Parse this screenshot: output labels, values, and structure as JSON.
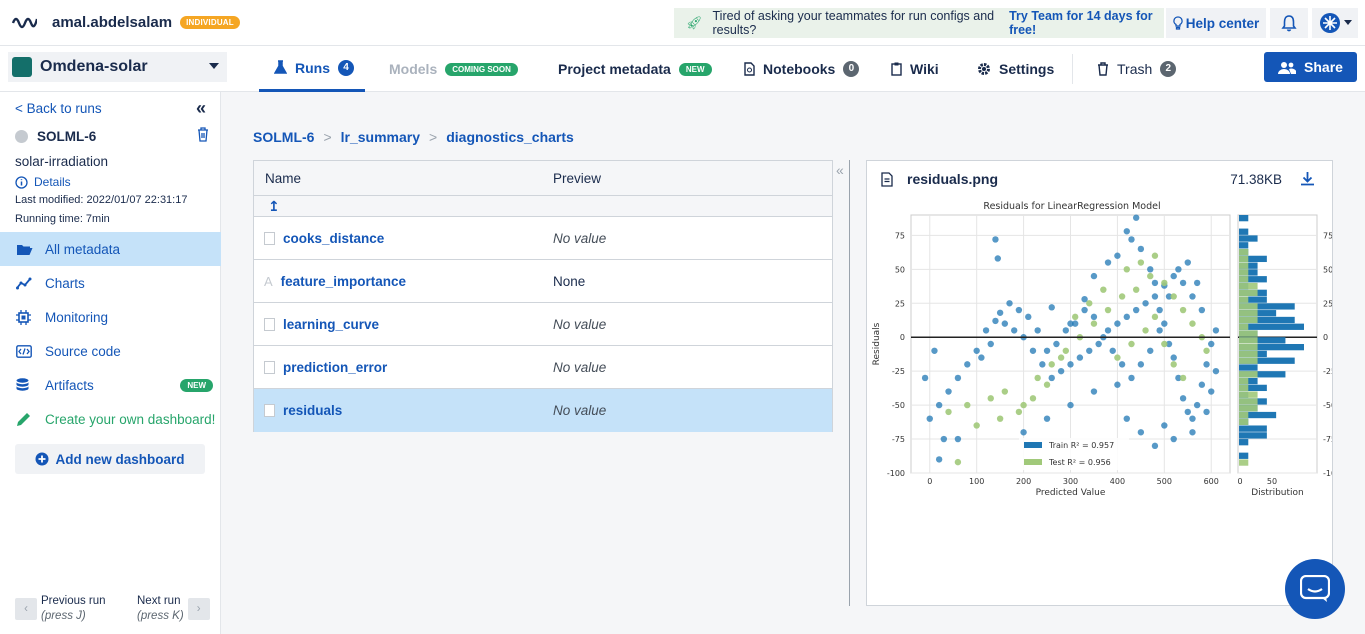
{
  "header": {
    "username": "amal.abdelsalam",
    "plan_badge": "INDIVIDUAL",
    "promo_text": "Tired of asking your teammates for run configs and results?",
    "promo_link": "Try Team for 14 days for free!",
    "help_label": "Help center"
  },
  "project": {
    "name": "Omdena-solar"
  },
  "tabs": {
    "runs": "Runs",
    "runs_count": "4",
    "models": "Models",
    "models_badge": "COMING SOON",
    "project_metadata": "Project metadata",
    "pm_badge": "NEW",
    "notebooks": "Notebooks",
    "notebooks_count": "0",
    "wiki": "Wiki",
    "settings": "Settings",
    "trash": "Trash",
    "trash_count": "2",
    "share": "Share"
  },
  "sidebar": {
    "back": "< Back to runs",
    "run_id": "SOLML-6",
    "run_name": "solar-irradiation",
    "details": "Details",
    "last_modified": "Last modified: 2022/01/07 22:31:17",
    "running_time": "Running time: 7min",
    "items": [
      {
        "label": "All metadata"
      },
      {
        "label": "Charts"
      },
      {
        "label": "Monitoring"
      },
      {
        "label": "Source code"
      },
      {
        "label": "Artifacts",
        "badge": "NEW"
      },
      {
        "label": "Create your own dashboard!"
      }
    ],
    "add_dashboard": "Add new dashboard",
    "prev_run": "Previous run",
    "prev_hint": "(press J)",
    "next_run": "Next run",
    "next_hint": "(press K)"
  },
  "breadcrumb": [
    "SOLML-6",
    "lr_summary",
    "diagnostics_charts"
  ],
  "table": {
    "col_name": "Name",
    "col_preview": "Preview",
    "up_symbol": "↥",
    "rows": [
      {
        "name": "cooks_distance",
        "preview": "No value"
      },
      {
        "name": "feature_importance",
        "preview": "None"
      },
      {
        "name": "learning_curve",
        "preview": "No value"
      },
      {
        "name": "prediction_error",
        "preview": "No value"
      },
      {
        "name": "residuals",
        "preview": "No value"
      }
    ]
  },
  "preview": {
    "filename": "residuals.png",
    "size": "71.38KB"
  },
  "chart_data": {
    "type": "scatter",
    "title": "Residuals for LinearRegression Model",
    "xlabel": "Predicted Value",
    "ylabel": "Residuals",
    "xlim": [
      -40,
      640
    ],
    "ylim": [
      -100,
      90
    ],
    "xticks": [
      "0",
      "100",
      "200",
      "300",
      "400",
      "500",
      "600"
    ],
    "yticks": [
      "75",
      "50",
      "25",
      "0",
      "-25",
      "-50",
      "-75",
      "-100"
    ],
    "hist_xlabel": "Distribution",
    "hist_xticks": [
      "0",
      "50"
    ],
    "legend": [
      "Train R² = 0.957",
      "Test R² = 0.956"
    ],
    "colors": {
      "train": "#1f77b4",
      "test": "#a1c97a"
    },
    "series": [
      {
        "name": "Train R² = 0.957",
        "points": [
          [
            140,
            72
          ],
          [
            145,
            58
          ],
          [
            260,
            22
          ],
          [
            300,
            10
          ],
          [
            330,
            28
          ],
          [
            350,
            45
          ],
          [
            380,
            55
          ],
          [
            400,
            60
          ],
          [
            420,
            78
          ],
          [
            430,
            72
          ],
          [
            440,
            88
          ],
          [
            450,
            65
          ],
          [
            470,
            50
          ],
          [
            480,
            40
          ],
          [
            490,
            20
          ],
          [
            500,
            10
          ],
          [
            510,
            -5
          ],
          [
            520,
            -15
          ],
          [
            530,
            -30
          ],
          [
            540,
            -45
          ],
          [
            550,
            -55
          ],
          [
            560,
            -60
          ],
          [
            570,
            -50
          ],
          [
            580,
            -35
          ],
          [
            590,
            -20
          ],
          [
            600,
            -5
          ],
          [
            610,
            5
          ],
          [
            560,
            30
          ],
          [
            540,
            40
          ],
          [
            520,
            45
          ],
          [
            500,
            38
          ],
          [
            480,
            30
          ],
          [
            460,
            25
          ],
          [
            440,
            20
          ],
          [
            420,
            15
          ],
          [
            400,
            10
          ],
          [
            380,
            5
          ],
          [
            360,
            -5
          ],
          [
            340,
            -10
          ],
          [
            320,
            -15
          ],
          [
            300,
            -20
          ],
          [
            280,
            -25
          ],
          [
            260,
            -30
          ],
          [
            240,
            -20
          ],
          [
            220,
            -10
          ],
          [
            200,
            0
          ],
          [
            180,
            5
          ],
          [
            160,
            10
          ],
          [
            140,
            12
          ],
          [
            120,
            5
          ],
          [
            100,
            -10
          ],
          [
            80,
            -20
          ],
          [
            60,
            -30
          ],
          [
            40,
            -40
          ],
          [
            20,
            -50
          ],
          [
            0,
            -60
          ],
          [
            -10,
            -30
          ],
          [
            10,
            -10
          ],
          [
            30,
            -75
          ],
          [
            60,
            -75
          ],
          [
            20,
            -90
          ],
          [
            200,
            -70
          ],
          [
            250,
            -60
          ],
          [
            300,
            -50
          ],
          [
            350,
            -40
          ],
          [
            400,
            -35
          ],
          [
            420,
            -60
          ],
          [
            450,
            -70
          ],
          [
            480,
            -80
          ],
          [
            500,
            -65
          ],
          [
            520,
            -75
          ],
          [
            560,
            -70
          ],
          [
            590,
            -55
          ],
          [
            600,
            -40
          ],
          [
            610,
            -25
          ],
          [
            580,
            20
          ],
          [
            570,
            40
          ],
          [
            550,
            55
          ],
          [
            530,
            50
          ],
          [
            510,
            30
          ],
          [
            490,
            5
          ],
          [
            470,
            -10
          ],
          [
            450,
            -20
          ],
          [
            430,
            -30
          ],
          [
            410,
            -20
          ],
          [
            390,
            -10
          ],
          [
            370,
            0
          ],
          [
            350,
            15
          ],
          [
            330,
            20
          ],
          [
            310,
            10
          ],
          [
            290,
            5
          ],
          [
            270,
            -5
          ],
          [
            250,
            -10
          ],
          [
            230,
            5
          ],
          [
            210,
            15
          ],
          [
            190,
            20
          ],
          [
            170,
            25
          ],
          [
            150,
            18
          ],
          [
            130,
            -5
          ],
          [
            110,
            -15
          ]
        ]
      },
      {
        "name": "Test R² = 0.956",
        "points": [
          [
            60,
            -92
          ],
          [
            40,
            -55
          ],
          [
            80,
            -50
          ],
          [
            100,
            -65
          ],
          [
            130,
            -45
          ],
          [
            160,
            -40
          ],
          [
            200,
            -50
          ],
          [
            230,
            -30
          ],
          [
            260,
            -20
          ],
          [
            290,
            -10
          ],
          [
            320,
            0
          ],
          [
            350,
            10
          ],
          [
            380,
            20
          ],
          [
            410,
            30
          ],
          [
            440,
            35
          ],
          [
            470,
            45
          ],
          [
            500,
            40
          ],
          [
            520,
            30
          ],
          [
            540,
            20
          ],
          [
            560,
            10
          ],
          [
            580,
            0
          ],
          [
            590,
            -10
          ],
          [
            400,
            -15
          ],
          [
            430,
            -5
          ],
          [
            460,
            5
          ],
          [
            480,
            15
          ],
          [
            500,
            -5
          ],
          [
            520,
            -20
          ],
          [
            540,
            -30
          ],
          [
            420,
            50
          ],
          [
            450,
            55
          ],
          [
            480,
            60
          ],
          [
            370,
            35
          ],
          [
            340,
            25
          ],
          [
            310,
            15
          ],
          [
            280,
            -15
          ],
          [
            250,
            -35
          ],
          [
            220,
            -45
          ],
          [
            190,
            -55
          ],
          [
            150,
            -60
          ]
        ]
      }
    ]
  }
}
